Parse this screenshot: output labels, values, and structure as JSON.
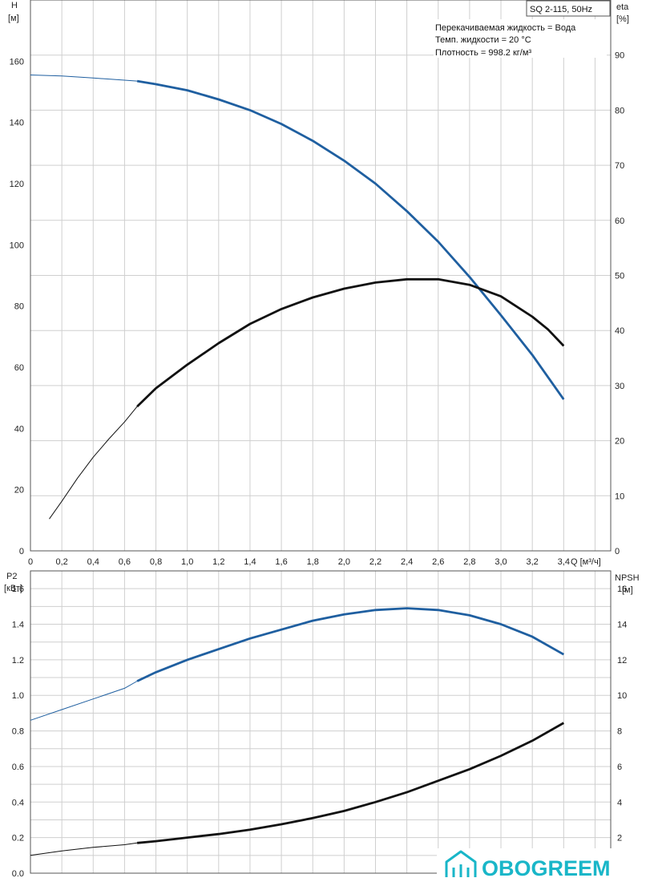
{
  "chart_data": [
    {
      "type": "line",
      "title": "SQ 2-115, 50Hz",
      "xlabel": "Q [м³/ч]",
      "ylabel": "H [м]",
      "ylabel_right": "eta [%]",
      "info": [
        "Перекачиваемая жидкость = Вода",
        "Темп. жидкости = 20 °C",
        "Плотность = 998.2 кг/м³"
      ],
      "xlim": [
        0,
        3.7
      ],
      "ylim": [
        0,
        180
      ],
      "ylim_right": [
        0,
        100
      ],
      "grid": true,
      "x_ticks": [
        "0",
        "0,2",
        "0,4",
        "0,6",
        "0,8",
        "1,0",
        "1,2",
        "1,4",
        "1,6",
        "1,8",
        "2,0",
        "2,2",
        "2,4",
        "2,6",
        "2,8",
        "3,0",
        "3,2",
        "3,4"
      ],
      "y_ticks": [
        "0",
        "20",
        "40",
        "60",
        "80",
        "100",
        "120",
        "140",
        "160"
      ],
      "y_ticks_right": [
        "0",
        "10",
        "20",
        "30",
        "40",
        "50",
        "60",
        "70",
        "80",
        "90"
      ],
      "series": [
        {
          "name": "H",
          "axis": "left",
          "color": "#1f5fa0",
          "thin_until_x": 0.68,
          "x": [
            0,
            0.2,
            0.4,
            0.6,
            0.68,
            0.8,
            1.0,
            1.2,
            1.4,
            1.6,
            1.8,
            2.0,
            2.2,
            2.4,
            2.6,
            2.8,
            3.0,
            3.2,
            3.4
          ],
          "y": [
            155.5,
            155.2,
            154.5,
            153.8,
            153.5,
            152.5,
            150.5,
            147.5,
            144,
            139.5,
            134,
            127.5,
            120,
            111,
            101,
            89.5,
            77,
            64,
            49.5
          ]
        },
        {
          "name": "eta",
          "axis": "right",
          "color": "#111111",
          "thin_until_x": 0.68,
          "x": [
            0.12,
            0.2,
            0.3,
            0.4,
            0.5,
            0.6,
            0.68,
            0.8,
            1.0,
            1.2,
            1.4,
            1.6,
            1.8,
            2.0,
            2.2,
            2.4,
            2.6,
            2.8,
            3.0,
            3.2,
            3.3,
            3.4
          ],
          "y": [
            5.8,
            9,
            13.2,
            17,
            20.3,
            23.4,
            26.2,
            29.5,
            33.8,
            37.7,
            41.2,
            43.9,
            46,
            47.6,
            48.7,
            49.3,
            49.3,
            48.3,
            46.2,
            42.5,
            40.2,
            37.2
          ]
        }
      ]
    },
    {
      "type": "line",
      "xlabel": "",
      "ylabel": "P2 [кВт]",
      "ylabel_right": "NPSH [м]",
      "xlim": [
        0,
        3.7
      ],
      "ylim": [
        0,
        1.7
      ],
      "ylim_right": [
        0,
        17
      ],
      "grid": true,
      "y_ticks": [
        "0.0",
        "0.2",
        "0.4",
        "0.6",
        "0.8",
        "1.0",
        "1.2",
        "1.4",
        "1.6"
      ],
      "y_ticks_right": [
        "2",
        "4",
        "6",
        "8",
        "10",
        "12",
        "14",
        "16"
      ],
      "series": [
        {
          "name": "P2",
          "axis": "left",
          "color": "#1f5fa0",
          "thin_until_x": 0.68,
          "x": [
            0,
            0.2,
            0.4,
            0.6,
            0.68,
            0.8,
            1.0,
            1.2,
            1.4,
            1.6,
            1.8,
            2.0,
            2.2,
            2.4,
            2.6,
            2.8,
            3.0,
            3.2,
            3.4
          ],
          "y": [
            0.86,
            0.92,
            0.98,
            1.04,
            1.08,
            1.13,
            1.2,
            1.26,
            1.32,
            1.37,
            1.42,
            1.455,
            1.48,
            1.49,
            1.48,
            1.45,
            1.4,
            1.33,
            1.23
          ]
        },
        {
          "name": "NPSH",
          "axis": "right",
          "color": "#111111",
          "thin_until_x": 0.68,
          "x": [
            0,
            0.2,
            0.4,
            0.6,
            0.68,
            0.8,
            1.0,
            1.2,
            1.4,
            1.6,
            1.8,
            2.0,
            2.2,
            2.4,
            2.6,
            2.8,
            3.0,
            3.2,
            3.4
          ],
          "y": [
            1.0,
            1.25,
            1.45,
            1.6,
            1.7,
            1.8,
            2.0,
            2.2,
            2.45,
            2.75,
            3.1,
            3.5,
            4.0,
            4.55,
            5.2,
            5.85,
            6.6,
            7.45,
            8.45
          ]
        }
      ]
    }
  ],
  "logo": {
    "text": "OBOGREEM",
    "color": "#19b6c8"
  }
}
